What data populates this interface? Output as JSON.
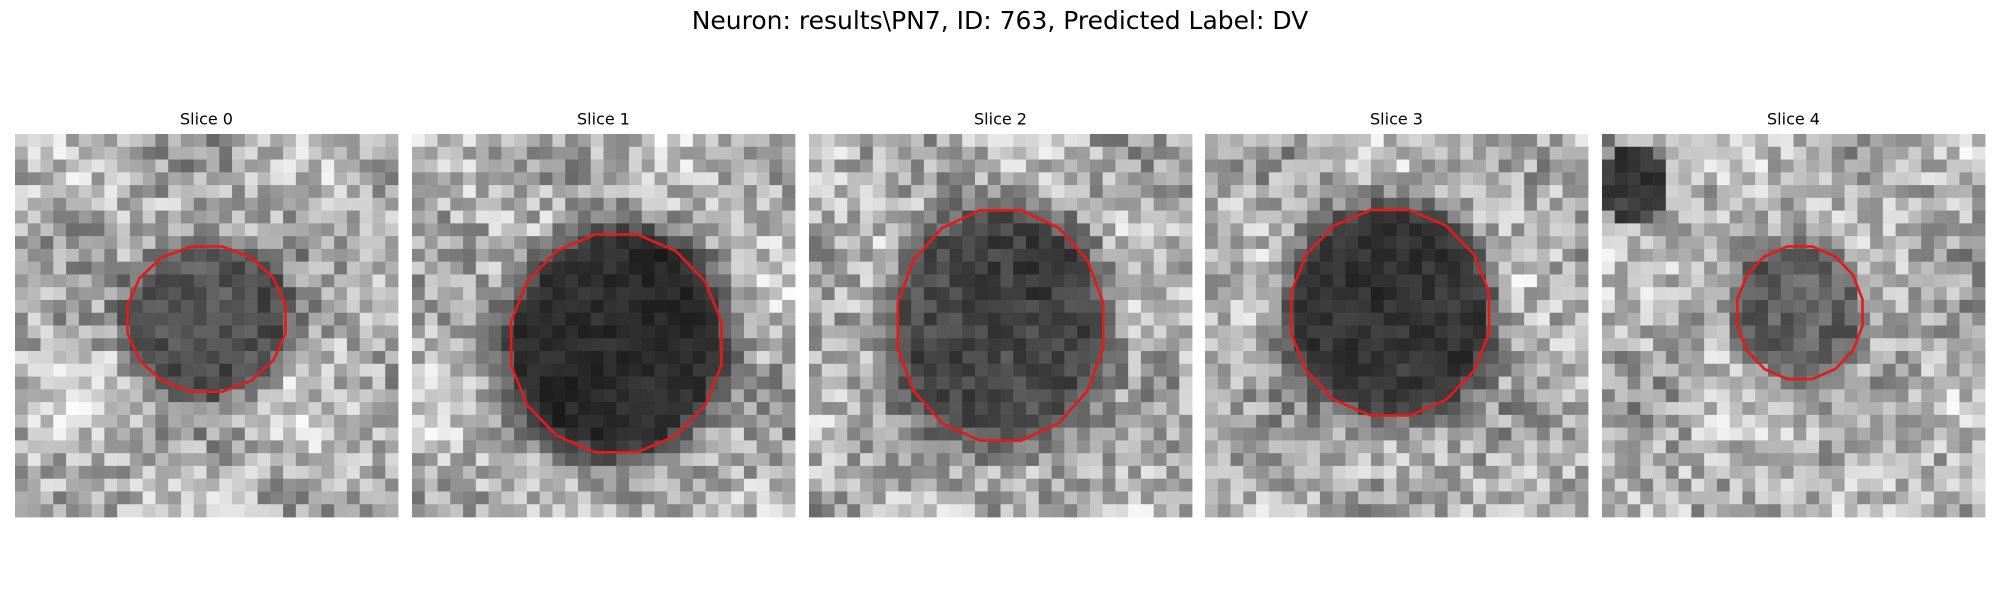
{
  "title": "Neuron: results\\PN7, ID: 763, Predicted Label: DV",
  "panels": [
    {
      "title": "Slice 0"
    },
    {
      "title": "Slice 1"
    },
    {
      "title": "Slice 2"
    },
    {
      "title": "Slice 3"
    },
    {
      "title": "Slice 4"
    }
  ]
}
